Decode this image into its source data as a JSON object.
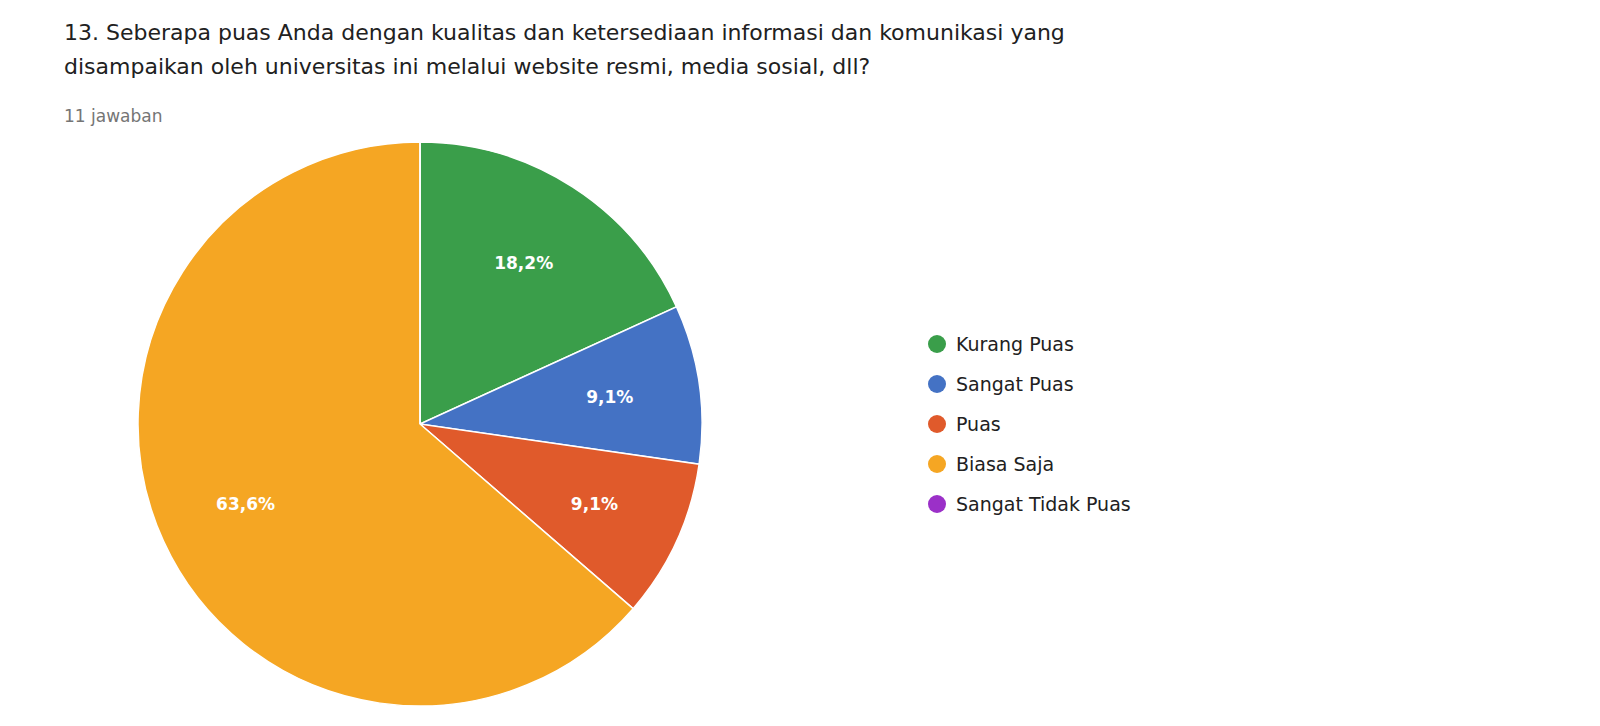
{
  "chart_data": {
    "type": "pie",
    "title": [
      "13.  Seberapa puas Anda dengan kualitas dan ketersediaan informasi dan komunikasi yang",
      "disampaikan oleh universitas ini melalui website resmi, media sosial, dll?"
    ],
    "subtitle": "11 jawaban",
    "categories": [
      "Kurang Puas",
      "Sangat Puas",
      "Puas",
      "Biasa Saja",
      "Sangat Tidak Puas"
    ],
    "values": [
      18.18181818,
      9.09090909,
      9.09090909,
      63.63636364,
      0.0
    ],
    "value_labels": [
      "18,2%",
      "9,1%",
      "9,1%",
      "63,6%",
      null
    ],
    "colors": [
      "#3A9E4A",
      "#4472C4",
      "#E05A2B",
      "#F5A623",
      "#9B30C8"
    ],
    "data_labels": true,
    "legend": "right"
  }
}
